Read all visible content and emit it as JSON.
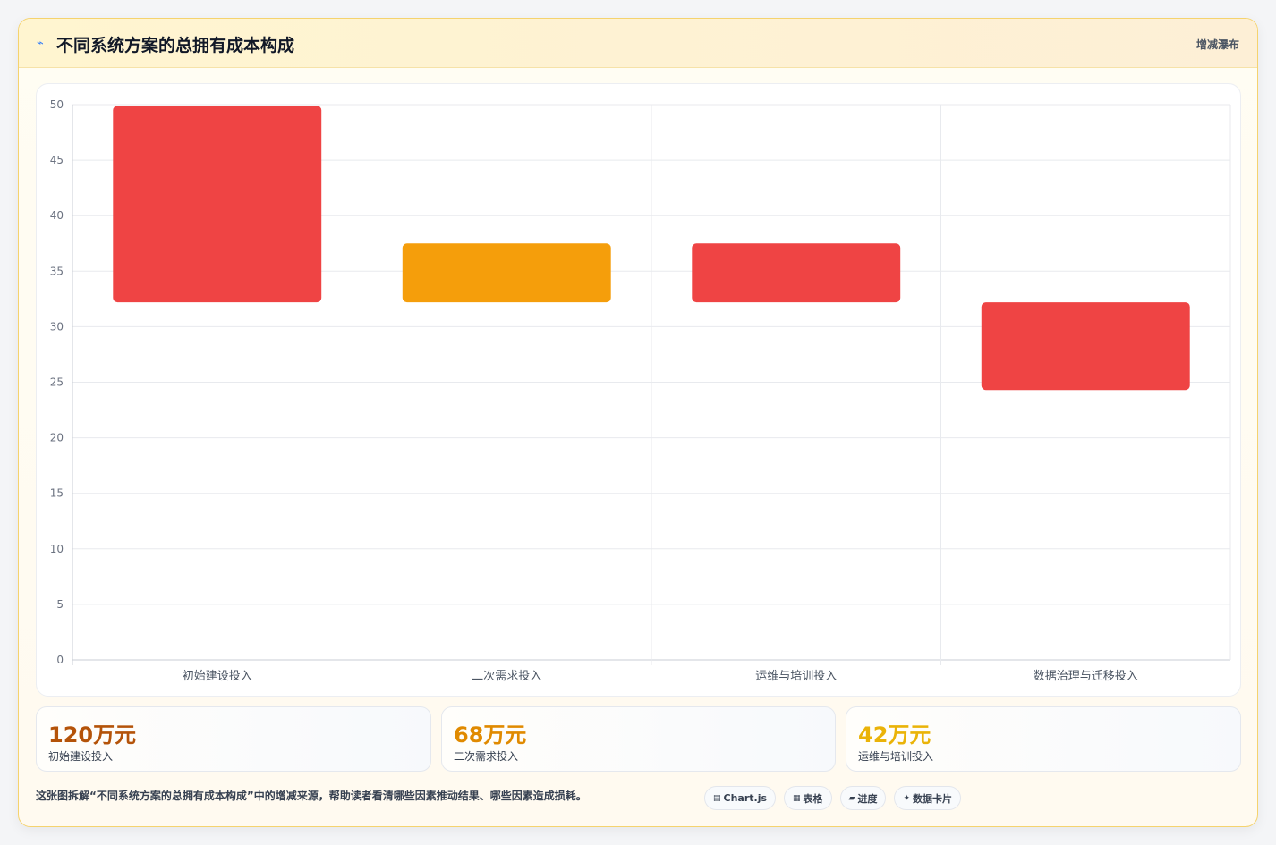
{
  "header": {
    "title": "不同系统方案的总拥有成本构成",
    "subtitle": "增减瀑布",
    "icon": "sparkline-icon"
  },
  "chart_data": {
    "type": "bar",
    "subtype": "floating-bar",
    "categories": [
      "初始建设投入",
      "二次需求投入",
      "运维与培训投入",
      "数据治理与迁移投入"
    ],
    "ranges": [
      [
        32.2,
        49.9
      ],
      [
        32.2,
        37.5
      ],
      [
        32.2,
        37.5
      ],
      [
        24.3,
        32.2
      ]
    ],
    "colors": [
      "#ef4444",
      "#f59e0b",
      "#ef4444",
      "#ef4444"
    ],
    "ylim": [
      0,
      50
    ],
    "yticks": [
      0,
      5,
      10,
      15,
      20,
      25,
      30,
      35,
      40,
      45,
      50
    ],
    "grid": true,
    "legend": "none"
  },
  "stats": [
    {
      "value": "120万元",
      "label": "初始建设投入",
      "color": "#b45309"
    },
    {
      "value": "68万元",
      "label": "二次需求投入",
      "color": "#e08a00"
    },
    {
      "value": "42万元",
      "label": "运维与培训投入",
      "color": "#eab308"
    }
  ],
  "footer": {
    "description": "这张图拆解“不同系统方案的总拥有成本构成”中的增减来源，帮助读者看清哪些因素推动结果、哪些因素造成损耗。",
    "chips": [
      {
        "icon": "chart-icon",
        "glyph": "▤",
        "label": "Chart.js"
      },
      {
        "icon": "table-icon",
        "glyph": "▦",
        "label": "表格"
      },
      {
        "icon": "progress-icon",
        "glyph": "▰",
        "label": "进度"
      },
      {
        "icon": "card-icon",
        "glyph": "✦",
        "label": "数据卡片"
      }
    ]
  }
}
